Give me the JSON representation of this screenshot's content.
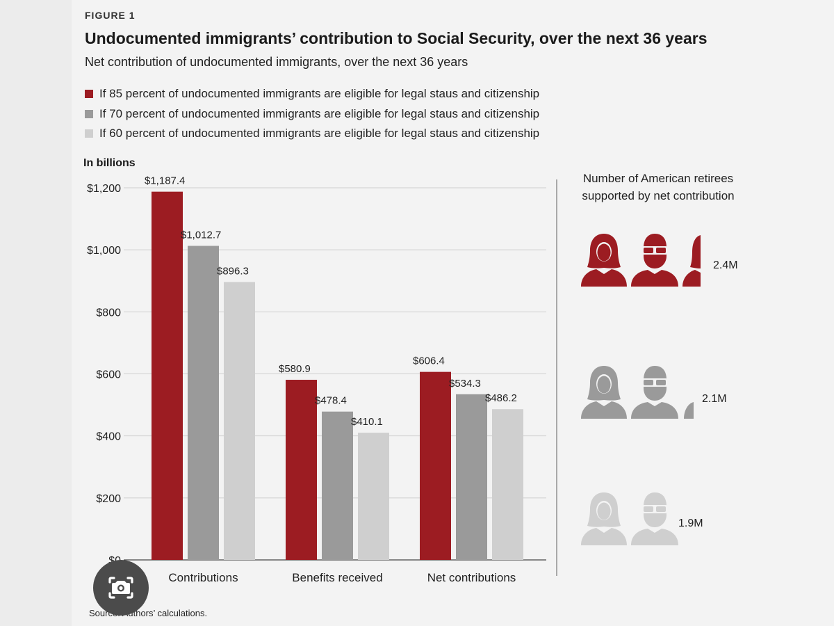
{
  "figure_label": "FIGURE 1",
  "chart_data": {
    "type": "bar",
    "title": "Undocumented immigrants’ contribution to Social Security, over the next 36 years",
    "subtitle": "Net contribution of undocumented immigrants, over the next 36 years",
    "ylabel": "In billions",
    "xlabel": "",
    "ylim": [
      0,
      1200
    ],
    "yticks": [
      0,
      200,
      400,
      600,
      800,
      1000,
      1200
    ],
    "ytick_labels": [
      "$0",
      "$200",
      "$400",
      "$600",
      "$800",
      "$1,000",
      "$1,200"
    ],
    "categories": [
      "Contributions",
      "Benefits received",
      "Net contributions"
    ],
    "series": [
      {
        "name": "If 85 percent of undocumented immigrants are eligible for legal staus and citizenship",
        "color": "#9c1c22",
        "values": [
          1187.4,
          580.9,
          606.4
        ],
        "labels": [
          "$1,187.4",
          "$580.9",
          "$606.4"
        ]
      },
      {
        "name": "If 70 percent of undocumented immigrants are eligible for legal staus and citizenship",
        "color": "#9a9a9a",
        "values": [
          1012.7,
          478.4,
          534.3
        ],
        "labels": [
          "$1,012.7",
          "$478.4",
          "$534.3"
        ]
      },
      {
        "name": "If 60 percent of undocumented immigrants are eligible for legal staus and citizenship",
        "color": "#cfcfcf",
        "values": [
          896.3,
          410.1,
          486.2
        ],
        "labels": [
          "$896.3",
          "$410.1",
          "$486.2"
        ]
      }
    ],
    "grid": true,
    "legend_position": "top-left"
  },
  "retirees_panel": {
    "title": "Number of American retirees supported by net contribution",
    "rows": [
      {
        "value": "2.4M",
        "retirees_millions": 2.4,
        "color": "#9c1c22"
      },
      {
        "value": "2.1M",
        "retirees_millions": 2.1,
        "color": "#9a9a9a"
      },
      {
        "value": "1.9M",
        "retirees_millions": 1.9,
        "color": "#cfcfcf"
      }
    ],
    "icons": [
      "female-person-icon",
      "male-person-with-glasses-icon"
    ]
  },
  "source": "Source: Authors’ calculations.",
  "overlay": {
    "icon": "lens-search-icon"
  }
}
